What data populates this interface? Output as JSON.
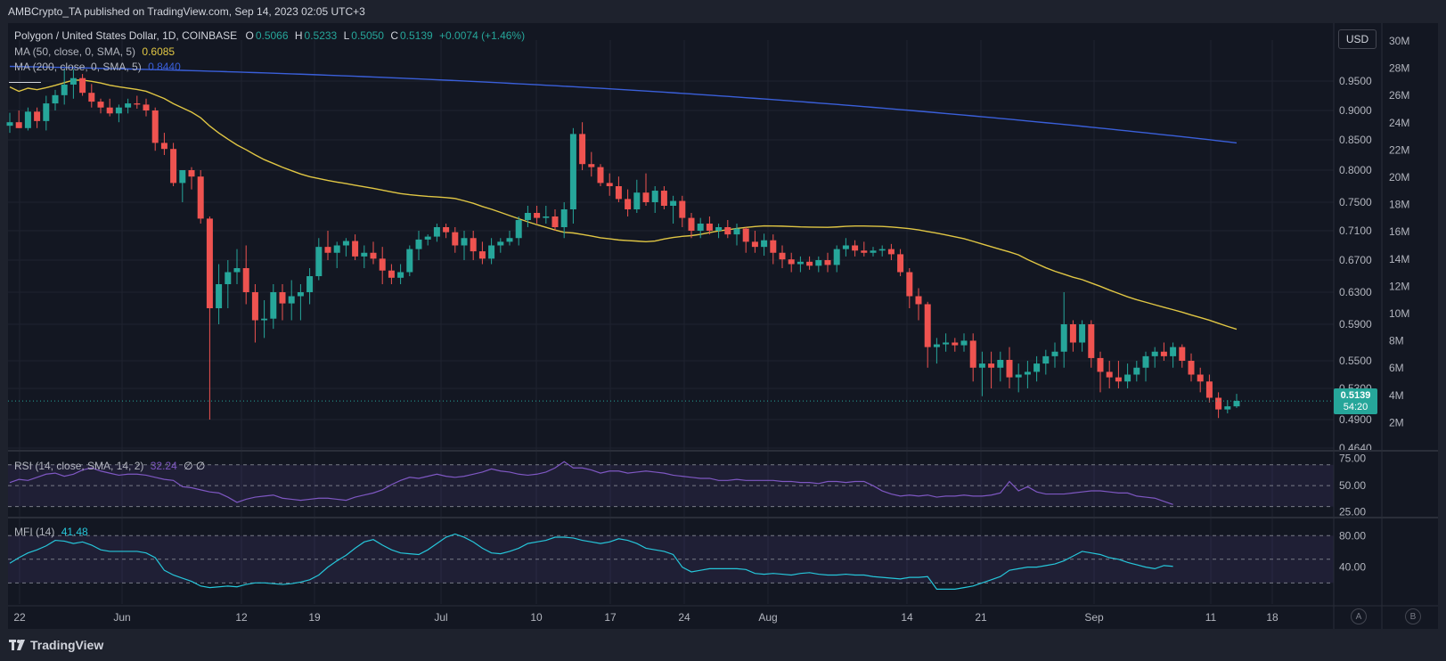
{
  "header": {
    "published": "AMBCrypto_TA published on TradingView.com, Sep 14, 2023 02:05 UTC+3"
  },
  "legend": {
    "symbol": "Polygon / United States Dollar, 1D, COINBASE",
    "o_label": "O",
    "o_value": "0.5066",
    "h_label": "H",
    "h_value": "0.5233",
    "l_label": "L",
    "l_value": "0.5050",
    "c_label": "C",
    "c_value": "0.5139",
    "change": "+0.0074 (+1.46%)",
    "ma50_label": "MA (50, close, 0, SMA, 5)",
    "ma50_value": "0.6085",
    "ma200_label": "MA (200, close, 0, SMA, 5)",
    "ma200_value": "0.8440",
    "rsi_label": "RSI (14, close, SMA, 14, 2)",
    "rsi_value": "32.24",
    "rsi_extra": "∅ ∅",
    "mfi_label": "MFI (14)",
    "mfi_value": "41.48"
  },
  "currency_button": "USD",
  "price_tag": {
    "price": "0.5139",
    "countdown": "54:20"
  },
  "footer": {
    "brand": "TradingView",
    "btn_a": "A",
    "btn_b": "B"
  },
  "colors": {
    "up": "#26a69a",
    "down": "#ef5350",
    "ma50": "#e0c644",
    "ma200": "#3a5fd9",
    "rsi": "#7e57c2",
    "mfi": "#26c6da",
    "background": "#131722"
  },
  "chart_data": [
    {
      "type": "candlestick",
      "title": "Polygon / United States Dollar, 1D, COINBASE",
      "x_tick_labels": [
        "22",
        "Jun",
        "12",
        "19",
        "Jul",
        "10",
        "17",
        "24",
        "Aug",
        "14",
        "21",
        "Sep",
        "11",
        "18"
      ],
      "price_ticks": [
        "0.9500",
        "0.9000",
        "0.8500",
        "0.8000",
        "0.7500",
        "0.7100",
        "0.6700",
        "0.6300",
        "0.5900",
        "0.5500",
        "0.5300",
        "0.4900",
        "0.4640"
      ],
      "volume_ticks": [
        "30M",
        "28M",
        "26M",
        "24M",
        "22M",
        "20M",
        "18M",
        "16M",
        "14M",
        "12M",
        "10M",
        "8M",
        "6M",
        "4M",
        "2M"
      ],
      "ylim": [
        0.464,
        1.0
      ],
      "last_price": 0.5139,
      "candles": [
        [
          0.874,
          0.896,
          0.862,
          0.88
        ],
        [
          0.88,
          0.9,
          0.87,
          0.87
        ],
        [
          0.87,
          0.905,
          0.866,
          0.898
        ],
        [
          0.898,
          0.905,
          0.87,
          0.882
        ],
        [
          0.882,
          0.925,
          0.866,
          0.912
        ],
        [
          0.912,
          0.935,
          0.9,
          0.926
        ],
        [
          0.926,
          0.97,
          0.91,
          0.944
        ],
        [
          0.944,
          0.97,
          0.92,
          0.955
        ],
        [
          0.955,
          0.962,
          0.925,
          0.93
        ],
        [
          0.93,
          0.945,
          0.905,
          0.915
        ],
        [
          0.915,
          0.92,
          0.895,
          0.905
        ],
        [
          0.905,
          0.92,
          0.89,
          0.895
        ],
        [
          0.895,
          0.91,
          0.88,
          0.905
        ],
        [
          0.905,
          0.92,
          0.895,
          0.912
        ],
        [
          0.912,
          0.925,
          0.903,
          0.91
        ],
        [
          0.91,
          0.92,
          0.89,
          0.9
        ],
        [
          0.9,
          0.905,
          0.832,
          0.845
        ],
        [
          0.845,
          0.862,
          0.825,
          0.835
        ],
        [
          0.835,
          0.845,
          0.775,
          0.78
        ],
        [
          0.78,
          0.795,
          0.75,
          0.8
        ],
        [
          0.8,
          0.805,
          0.77,
          0.79
        ],
        [
          0.79,
          0.8,
          0.72,
          0.727
        ],
        [
          0.727,
          0.73,
          0.49,
          0.61
        ],
        [
          0.61,
          0.665,
          0.59,
          0.64
        ],
        [
          0.64,
          0.67,
          0.61,
          0.655
        ],
        [
          0.655,
          0.685,
          0.64,
          0.66
        ],
        [
          0.66,
          0.69,
          0.615,
          0.63
        ],
        [
          0.63,
          0.64,
          0.57,
          0.595
        ],
        [
          0.595,
          0.62,
          0.575,
          0.597
        ],
        [
          0.597,
          0.64,
          0.585,
          0.63
        ],
        [
          0.63,
          0.64,
          0.595,
          0.616
        ],
        [
          0.616,
          0.645,
          0.595,
          0.625
        ],
        [
          0.625,
          0.64,
          0.595,
          0.63
        ],
        [
          0.63,
          0.66,
          0.615,
          0.65
        ],
        [
          0.65,
          0.7,
          0.645,
          0.688
        ],
        [
          0.688,
          0.71,
          0.67,
          0.68
        ],
        [
          0.68,
          0.695,
          0.66,
          0.69
        ],
        [
          0.69,
          0.7,
          0.675,
          0.696
        ],
        [
          0.696,
          0.705,
          0.67,
          0.675
        ],
        [
          0.675,
          0.69,
          0.66,
          0.68
        ],
        [
          0.68,
          0.695,
          0.665,
          0.672
        ],
        [
          0.672,
          0.688,
          0.64,
          0.657
        ],
        [
          0.657,
          0.665,
          0.64,
          0.648
        ],
        [
          0.648,
          0.665,
          0.64,
          0.655
        ],
        [
          0.655,
          0.69,
          0.65,
          0.685
        ],
        [
          0.685,
          0.71,
          0.67,
          0.698
        ],
        [
          0.698,
          0.705,
          0.69,
          0.702
        ],
        [
          0.702,
          0.72,
          0.695,
          0.715
        ],
        [
          0.715,
          0.72,
          0.7,
          0.708
        ],
        [
          0.708,
          0.715,
          0.68,
          0.69
        ],
        [
          0.69,
          0.71,
          0.67,
          0.7
        ],
        [
          0.7,
          0.71,
          0.67,
          0.682
        ],
        [
          0.682,
          0.695,
          0.665,
          0.672
        ],
        [
          0.672,
          0.7,
          0.665,
          0.69
        ],
        [
          0.69,
          0.7,
          0.68,
          0.695
        ],
        [
          0.695,
          0.71,
          0.69,
          0.7
        ],
        [
          0.7,
          0.73,
          0.69,
          0.725
        ],
        [
          0.725,
          0.745,
          0.715,
          0.735
        ],
        [
          0.735,
          0.745,
          0.72,
          0.728
        ],
        [
          0.728,
          0.745,
          0.72,
          0.73
        ],
        [
          0.73,
          0.74,
          0.71,
          0.715
        ],
        [
          0.715,
          0.75,
          0.7,
          0.74
        ],
        [
          0.74,
          0.87,
          0.72,
          0.86
        ],
        [
          0.86,
          0.88,
          0.8,
          0.81
        ],
        [
          0.81,
          0.83,
          0.79,
          0.805
        ],
        [
          0.805,
          0.81,
          0.775,
          0.78
        ],
        [
          0.78,
          0.795,
          0.76,
          0.775
        ],
        [
          0.775,
          0.79,
          0.75,
          0.755
        ],
        [
          0.755,
          0.77,
          0.73,
          0.74
        ],
        [
          0.74,
          0.785,
          0.735,
          0.765
        ],
        [
          0.765,
          0.795,
          0.745,
          0.75
        ],
        [
          0.75,
          0.775,
          0.735,
          0.768
        ],
        [
          0.768,
          0.775,
          0.74,
          0.745
        ],
        [
          0.745,
          0.76,
          0.72,
          0.752
        ],
        [
          0.752,
          0.76,
          0.715,
          0.728
        ],
        [
          0.728,
          0.735,
          0.7,
          0.71
        ],
        [
          0.71,
          0.728,
          0.7,
          0.72
        ],
        [
          0.72,
          0.73,
          0.705,
          0.71
        ],
        [
          0.71,
          0.72,
          0.7,
          0.715
        ],
        [
          0.715,
          0.725,
          0.7,
          0.705
        ],
        [
          0.705,
          0.72,
          0.69,
          0.713
        ],
        [
          0.713,
          0.715,
          0.68,
          0.695
        ],
        [
          0.695,
          0.71,
          0.68,
          0.688
        ],
        [
          0.688,
          0.706,
          0.676,
          0.697
        ],
        [
          0.697,
          0.705,
          0.665,
          0.68
        ],
        [
          0.68,
          0.69,
          0.66,
          0.671
        ],
        [
          0.671,
          0.68,
          0.655,
          0.665
        ],
        [
          0.665,
          0.675,
          0.655,
          0.668
        ],
        [
          0.668,
          0.675,
          0.658,
          0.663
        ],
        [
          0.663,
          0.675,
          0.655,
          0.67
        ],
        [
          0.67,
          0.68,
          0.655,
          0.664
        ],
        [
          0.664,
          0.69,
          0.655,
          0.685
        ],
        [
          0.685,
          0.7,
          0.675,
          0.69
        ],
        [
          0.69,
          0.697,
          0.675,
          0.683
        ],
        [
          0.683,
          0.695,
          0.675,
          0.68
        ],
        [
          0.68,
          0.688,
          0.675,
          0.683
        ],
        [
          0.683,
          0.69,
          0.675,
          0.685
        ],
        [
          0.685,
          0.692,
          0.67,
          0.678
        ],
        [
          0.678,
          0.685,
          0.65,
          0.655
        ],
        [
          0.655,
          0.66,
          0.61,
          0.625
        ],
        [
          0.625,
          0.635,
          0.595,
          0.615
        ],
        [
          0.615,
          0.618,
          0.545,
          0.565
        ],
        [
          0.565,
          0.575,
          0.548,
          0.568
        ],
        [
          0.568,
          0.58,
          0.56,
          0.57
        ],
        [
          0.57,
          0.575,
          0.56,
          0.567
        ],
        [
          0.567,
          0.58,
          0.56,
          0.572
        ],
        [
          0.572,
          0.58,
          0.535,
          0.545
        ],
        [
          0.545,
          0.56,
          0.52,
          0.548
        ],
        [
          0.548,
          0.56,
          0.53,
          0.545
        ],
        [
          0.545,
          0.56,
          0.535,
          0.551
        ],
        [
          0.551,
          0.565,
          0.53,
          0.538
        ],
        [
          0.538,
          0.548,
          0.525,
          0.54
        ],
        [
          0.54,
          0.55,
          0.53,
          0.542
        ],
        [
          0.542,
          0.555,
          0.535,
          0.548
        ],
        [
          0.548,
          0.562,
          0.54,
          0.555
        ],
        [
          0.555,
          0.57,
          0.545,
          0.56
        ],
        [
          0.56,
          0.63,
          0.545,
          0.59
        ],
        [
          0.59,
          0.595,
          0.56,
          0.57
        ],
        [
          0.57,
          0.595,
          0.56,
          0.59
        ],
        [
          0.59,
          0.595,
          0.545,
          0.553
        ],
        [
          0.553,
          0.56,
          0.525,
          0.542
        ],
        [
          0.542,
          0.55,
          0.53,
          0.538
        ],
        [
          0.538,
          0.55,
          0.53,
          0.535
        ],
        [
          0.535,
          0.548,
          0.53,
          0.54
        ],
        [
          0.54,
          0.55,
          0.535,
          0.545
        ],
        [
          0.545,
          0.56,
          0.535,
          0.555
        ],
        [
          0.555,
          0.565,
          0.545,
          0.56
        ],
        [
          0.56,
          0.57,
          0.55,
          0.555
        ],
        [
          0.555,
          0.57,
          0.545,
          0.565
        ],
        [
          0.565,
          0.568,
          0.545,
          0.55
        ],
        [
          0.55,
          0.558,
          0.535,
          0.54
        ],
        [
          0.54,
          0.545,
          0.525,
          0.535
        ],
        [
          0.535,
          0.54,
          0.512,
          0.518
        ],
        [
          0.518,
          0.525,
          0.492,
          0.503
        ],
        [
          0.503,
          0.515,
          0.498,
          0.507
        ],
        [
          0.507,
          0.523,
          0.505,
          0.514
        ]
      ]
    },
    {
      "type": "line",
      "title": "RSI (14, close, SMA, 14, 2)",
      "y_ticks": [
        "75.00",
        "50.00",
        "25.00"
      ],
      "ylim": [
        22,
        80
      ],
      "values": [
        53,
        56,
        55,
        58,
        61,
        62,
        59,
        61,
        65,
        67,
        64,
        62,
        60,
        61,
        61,
        60,
        58,
        56,
        55,
        49,
        48,
        46,
        44,
        43,
        39,
        34,
        37,
        39,
        40,
        41,
        38,
        37,
        36,
        37,
        38,
        38,
        37,
        36,
        39,
        41,
        43,
        46,
        51,
        55,
        58,
        57,
        59,
        61,
        59,
        58,
        59,
        61,
        63,
        66,
        64,
        63,
        61,
        60,
        61,
        63,
        67,
        73,
        67,
        67,
        65,
        62,
        64,
        64,
        62,
        63,
        64,
        63,
        62,
        60,
        59,
        58,
        57,
        57,
        55,
        55,
        56,
        55,
        55,
        55,
        55,
        54,
        54,
        53,
        53,
        52,
        54,
        54,
        53,
        54,
        54,
        50,
        45,
        42,
        40,
        41,
        40,
        41,
        39,
        40,
        40,
        41,
        40,
        40,
        41,
        43,
        54,
        45,
        49,
        44,
        42,
        42,
        42,
        43,
        44,
        45,
        45,
        44,
        43,
        43,
        40,
        39,
        38,
        35,
        32
      ]
    },
    {
      "type": "line",
      "title": "MFI (14)",
      "y_ticks": [
        "80.00",
        "40.00"
      ],
      "ylim": [
        0,
        95
      ],
      "values": [
        45,
        52,
        58,
        62,
        67,
        74,
        73,
        70,
        72,
        68,
        62,
        60,
        60,
        60,
        60,
        58,
        52,
        36,
        30,
        26,
        22,
        16,
        14,
        15,
        16,
        15,
        18,
        20,
        20,
        19,
        18,
        19,
        21,
        24,
        30,
        40,
        48,
        55,
        64,
        72,
        75,
        68,
        62,
        58,
        57,
        56,
        62,
        70,
        78,
        82,
        78,
        72,
        64,
        58,
        57,
        60,
        64,
        70,
        72,
        74,
        78,
        78,
        77,
        74,
        72,
        70,
        72,
        76,
        74,
        70,
        64,
        62,
        60,
        56,
        40,
        34,
        36,
        38,
        38,
        38,
        38,
        37,
        32,
        31,
        32,
        31,
        30,
        32,
        33,
        31,
        30,
        30,
        31,
        30,
        30,
        28,
        27,
        26,
        25,
        27,
        27,
        28,
        12,
        12,
        12,
        14,
        16,
        20,
        24,
        28,
        36,
        38,
        40,
        40,
        42,
        44,
        48,
        54,
        60,
        58,
        56,
        52,
        50,
        46,
        43,
        40,
        38,
        42,
        41
      ]
    }
  ]
}
